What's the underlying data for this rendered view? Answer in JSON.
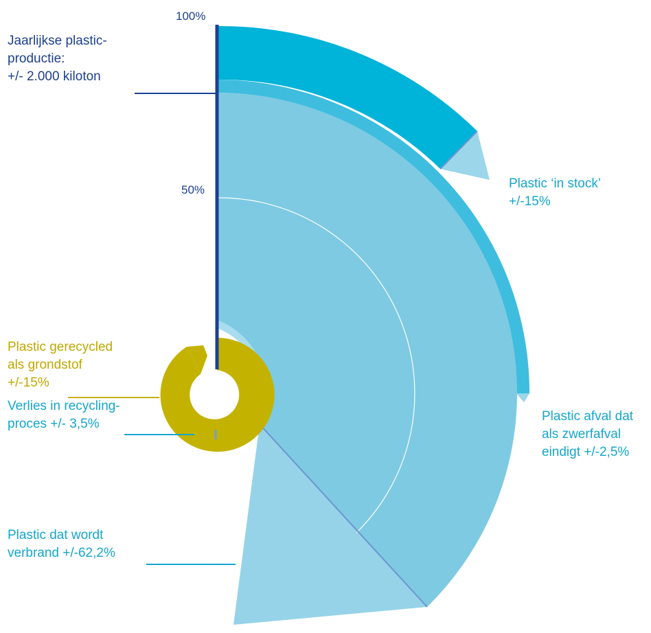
{
  "axis": {
    "tick_100": "100%",
    "tick_50": "50%"
  },
  "labels": {
    "production": {
      "line1": "Jaarlijkse plastic-",
      "line2": "productie:",
      "line3": "+/- 2.000 kiloton"
    },
    "in_stock": {
      "line1": "Plastic ‘in stock’",
      "line2": "+/-15%"
    },
    "litter": {
      "line1": "Plastic afval dat",
      "line2": "als zwerfafval",
      "line3": "eindigt +/-2,5%"
    },
    "recycled": {
      "line1": "Plastic gerecycled",
      "line2": "als grondstof",
      "line3": "+/-15%"
    },
    "recycling_loss": {
      "line1": "Verlies in recycling-",
      "line2": "proces +/- 3,5%"
    },
    "incinerated": {
      "line1": "Plastic dat wordt",
      "line2": "verbrand +/-62,2%"
    }
  },
  "chart_data": {
    "type": "radial-flow",
    "total": "+/- 2.000 kiloton",
    "segments": [
      {
        "name": "Plastic ‘in stock’",
        "percent": 15
      },
      {
        "name": "Plastic afval dat als zwerfafval eindigt",
        "percent": 2.5
      },
      {
        "name": "Plastic dat wordt verbrand",
        "percent": 62.2
      },
      {
        "name": "Verlies in recycling-proces",
        "percent": 3.5
      },
      {
        "name": "Plastic gerecycled als grondstof",
        "percent": 15
      }
    ]
  },
  "colors": {
    "axis": "#1d3f8f",
    "stock_band": "#00b3d8",
    "stock_wedge": "#9bd6ea",
    "litter_band": "#3ebddf",
    "waste_fill": "#7ecae2",
    "incineration_wedge": "#96d3e8",
    "recycled": "#c4b200",
    "ring_light": "#a9dcee"
  }
}
